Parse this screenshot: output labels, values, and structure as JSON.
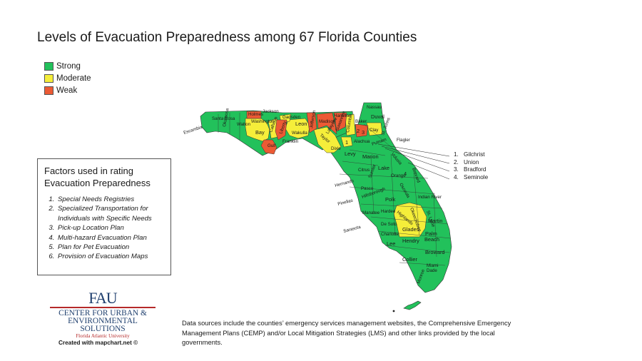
{
  "title": "Levels of Evacuation Preparedness among 67 Florida Counties",
  "legend": [
    {
      "label": "Strong",
      "color": "#22c15b"
    },
    {
      "label": "Moderate",
      "color": "#f5ee3a"
    },
    {
      "label": "Weak",
      "color": "#ec5a34"
    }
  ],
  "factors": {
    "title_line1": "Factors used in rating",
    "title_line2": "Evacuation Preparedness",
    "items": [
      "Special Needs Registries",
      "Specialized Transportation for Individuals with Specific Needs",
      "Pick-up Location Plan",
      "Multi-hazard Evacuation Plan",
      "Plan for Pet Evacuation",
      "Provision of Evacuation Maps"
    ]
  },
  "numbered_counties": [
    {
      "num": "1.",
      "name": "Gilchrist"
    },
    {
      "num": "2.",
      "name": "Union"
    },
    {
      "num": "3.",
      "name": "Bradford"
    },
    {
      "num": "4.",
      "name": "Seminole"
    }
  ],
  "map_labels": {
    "escambia": "Escambia",
    "santa_rosa": "Santa Rosa",
    "okaloosa": "Okaloosa",
    "walton": "Walton",
    "holmes": "Holmes",
    "washington": "Washington",
    "jackson": "Jackson",
    "bay": "Bay",
    "calhoun": "Calhoun",
    "gulf": "Gulf",
    "liberty": "Liberty",
    "gadsden": "Gadsden",
    "franklin": "Franklin",
    "leon": "Leon",
    "wakulla": "Wakulla",
    "jefferson": "Jefferson",
    "madison": "Madison",
    "hamilton": "Hamilton",
    "suwannee": "Suwannee",
    "taylor": "Taylor",
    "lafayette": "Lafayette",
    "dixie": "Dixie",
    "columbia": "Columbia",
    "baker": "Baker",
    "nassau": "Nassau",
    "duval": "Duval",
    "clay": "Clay",
    "st_johns": "St. Johns",
    "putnam": "Putnam",
    "flagler": "Flagler",
    "alachua": "Alachua",
    "levy": "Levy",
    "marion": "Marion",
    "volusia": "Volusia",
    "citrus": "Citrus",
    "lake": "Lake",
    "sumter": "Sumter",
    "hernando": "Hernando",
    "pasco": "Pasco",
    "orange": "Orange",
    "brevard": "Brevard",
    "pinellas": "Pinellas",
    "hillsborough": "Hillsborough",
    "polk": "Polk",
    "osceola": "Osceola",
    "indian_river": "Indian River",
    "manatee": "Manatee",
    "hardee": "Hardee",
    "highlands": "Highlands",
    "okeechobee": "Okeechobee",
    "st_lucie": "St. Lucie",
    "sarasota": "Sarasota",
    "de_soto": "De Soto",
    "martin": "Martin",
    "charlotte": "Charlotte",
    "glades": "Glades",
    "palm_beach": "Palm Beach",
    "lee": "Lee",
    "hendry": "Hendry",
    "collier": "Collier",
    "broward": "Broward",
    "miami_dade": "Miami Dade",
    "monroe": "Monroe",
    "n1": "1",
    "n2": "2",
    "n3": "3",
    "n4": "4"
  },
  "credit": "Created with mapchart.net ©",
  "sources": "Data sources include the counties’ emergency services management websites, the Comprehensive Emergency Management Plans (CEMP) and/or Local Mitigation Strategies (LMS) and other links provided by the local governments.",
  "logo": {
    "mark": "FAU",
    "line1": "CENTER FOR URBAN &",
    "line2": "ENVIRONMENTAL SOLUTIONS",
    "sub": "Florida Atlantic University"
  }
}
